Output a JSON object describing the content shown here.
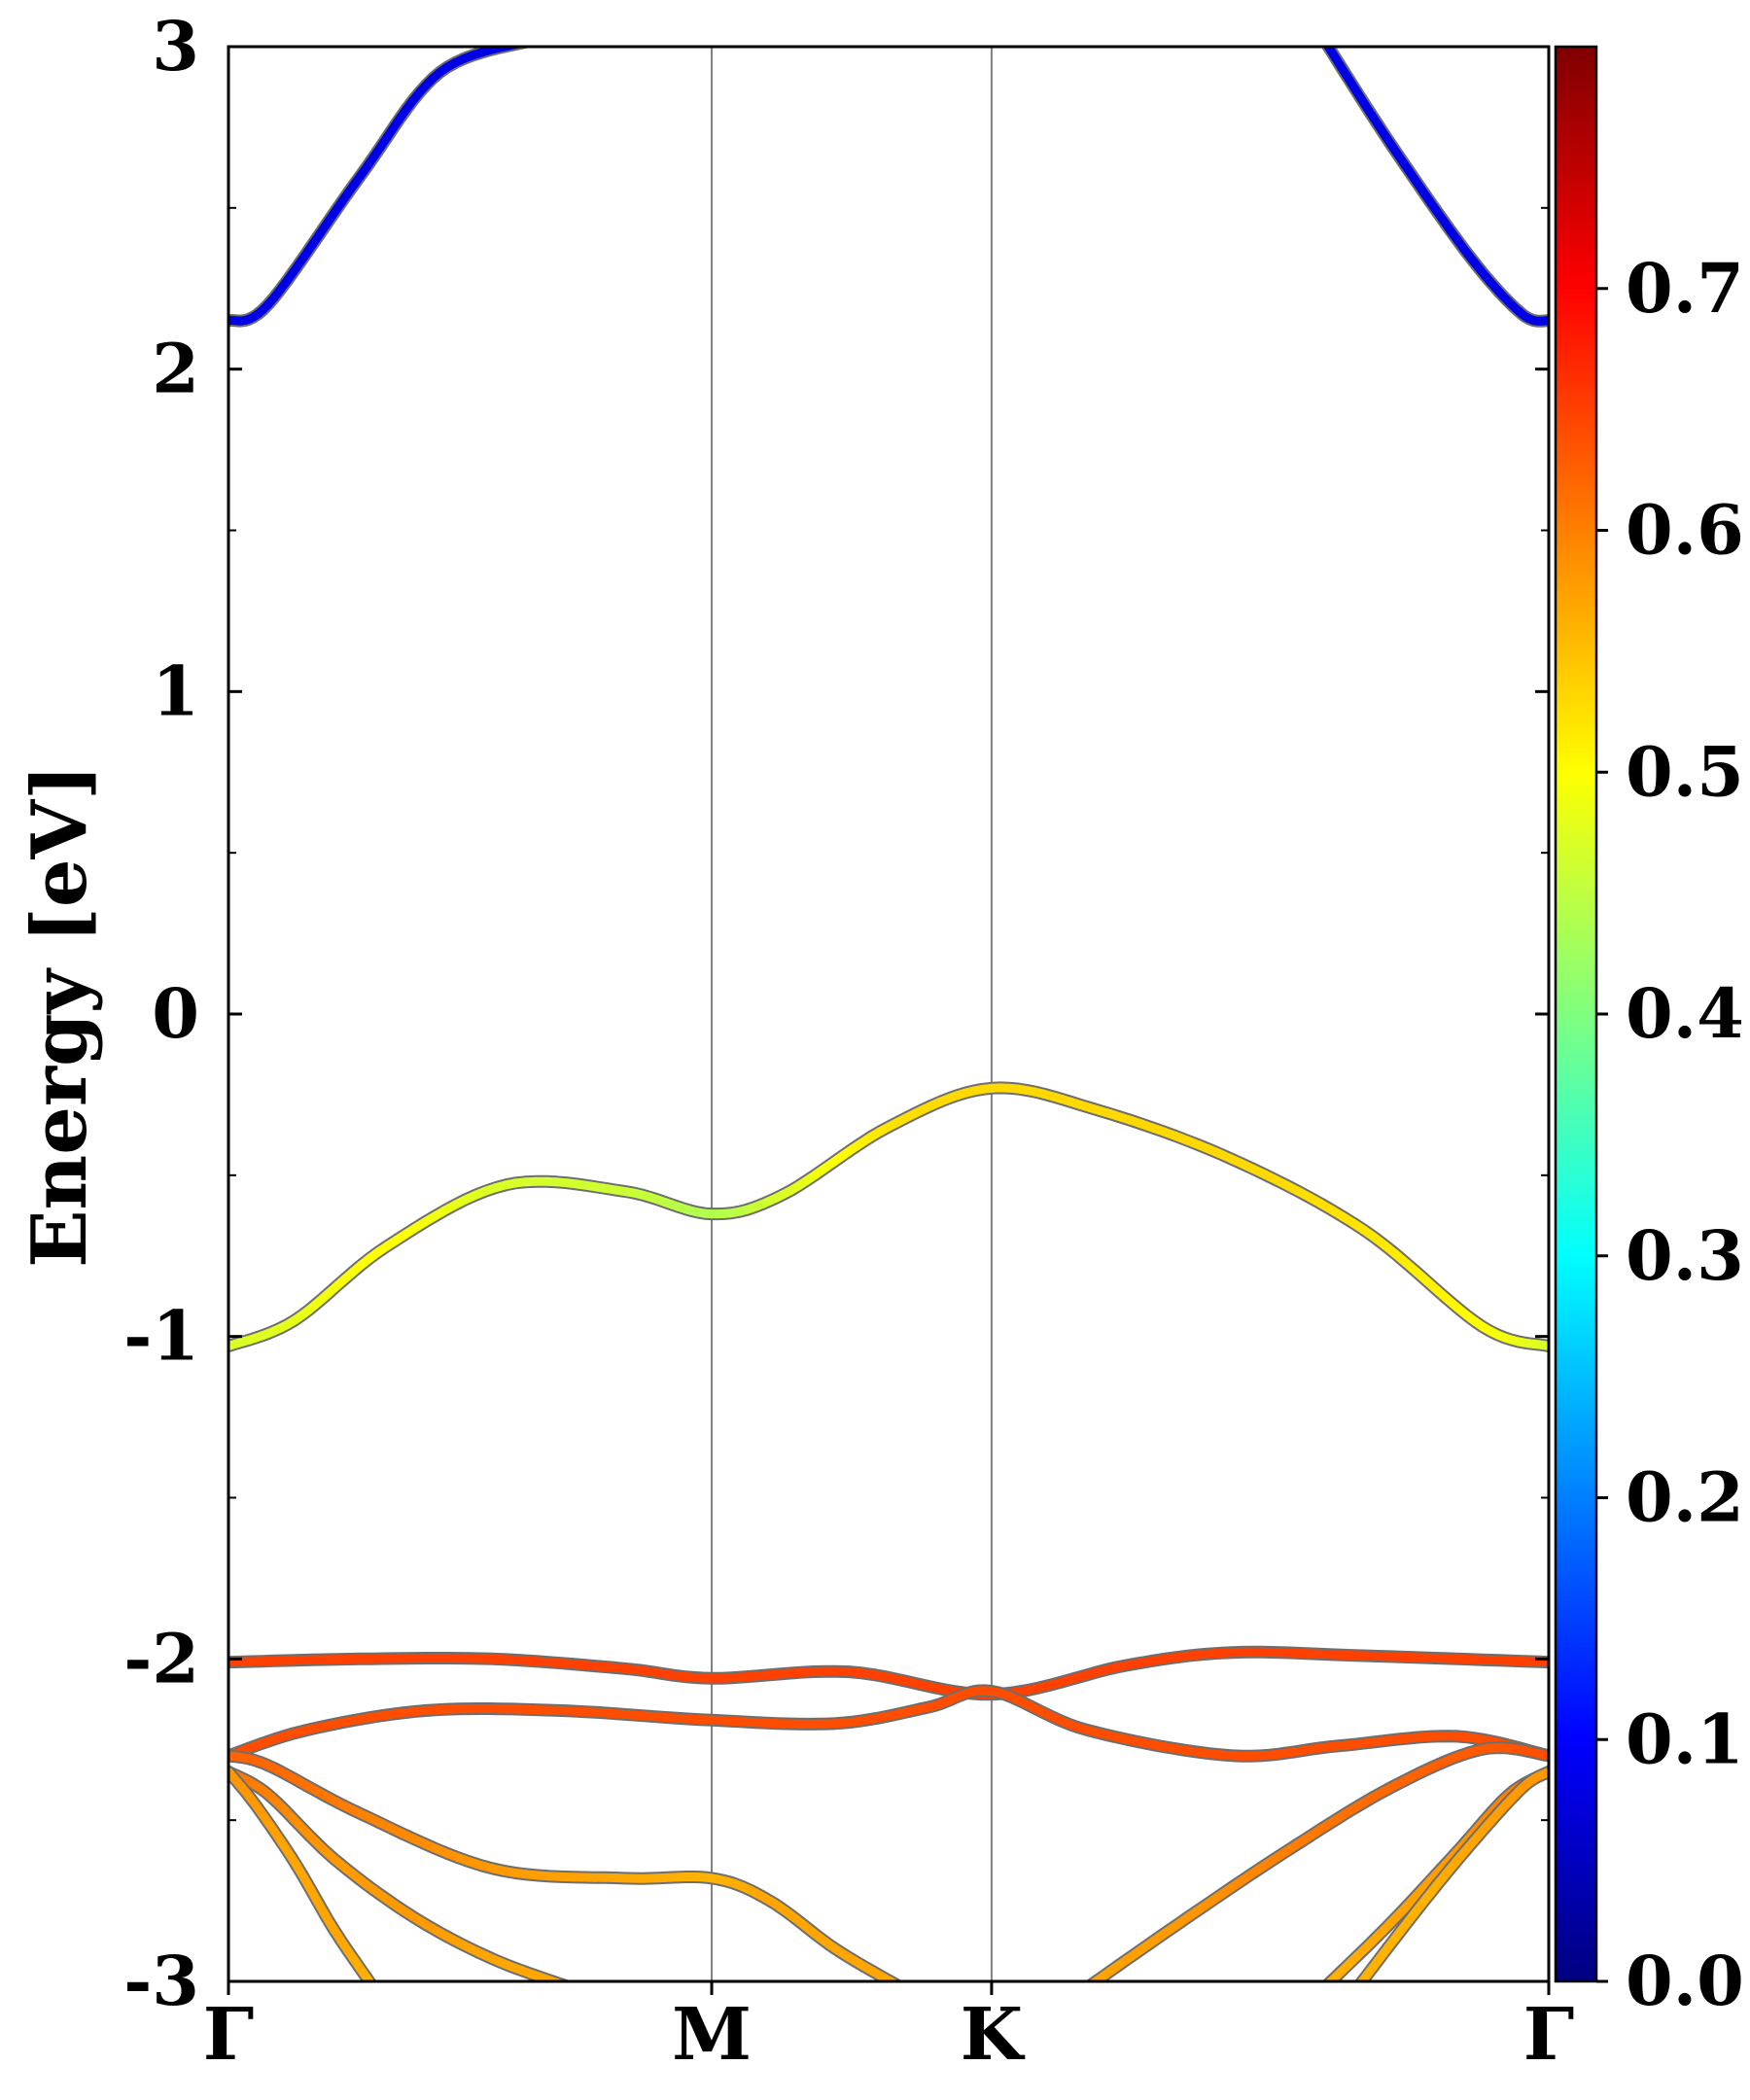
{
  "chart_data": {
    "type": "line",
    "ylabel": "Energy [eV]",
    "ylim": [
      -3,
      3
    ],
    "yticks": [
      "3",
      "2",
      "1",
      "0",
      "-1",
      "-2",
      "-3"
    ],
    "ytick_values": [
      3,
      2,
      1,
      0,
      -1,
      -2,
      -3
    ],
    "x_kpoints": [
      {
        "label": "Γ",
        "pos": 0.0
      },
      {
        "label": "M",
        "pos": 0.366
      },
      {
        "label": "K",
        "pos": 0.578
      },
      {
        "label": "Γ",
        "pos": 1.0
      }
    ],
    "colorbar": {
      "range": [
        0.0,
        0.8
      ],
      "ticks": [
        "0.0",
        "0.1",
        "0.2",
        "0.3",
        "0.4",
        "0.5",
        "0.6",
        "0.7"
      ],
      "tick_values": [
        0.0,
        0.1,
        0.2,
        0.3,
        0.4,
        0.5,
        0.6,
        0.7
      ],
      "colormap": "jet"
    },
    "series": [
      {
        "x": [
          0,
          0.03,
          0.1,
          0.16,
          0.23
        ],
        "y": [
          2.15,
          2.2,
          2.6,
          2.92,
          3.02
        ],
        "w": [
          0.08,
          0.08,
          0.08,
          0.08,
          0.08
        ]
      },
      {
        "x": [
          0.83,
          0.88,
          0.94,
          0.98,
          1.0
        ],
        "y": [
          3.02,
          2.7,
          2.35,
          2.17,
          2.15
        ],
        "w": [
          0.08,
          0.08,
          0.08,
          0.08,
          0.08
        ]
      },
      {
        "x": [
          0,
          0.05,
          0.12,
          0.21,
          0.3,
          0.366,
          0.42,
          0.5,
          0.578,
          0.66,
          0.76,
          0.86,
          0.95,
          1.0
        ],
        "y": [
          -1.03,
          -0.95,
          -0.72,
          -0.53,
          -0.55,
          -0.62,
          -0.56,
          -0.35,
          -0.23,
          -0.3,
          -0.45,
          -0.67,
          -0.97,
          -1.03
        ],
        "w": [
          0.47,
          0.48,
          0.5,
          0.47,
          0.46,
          0.44,
          0.47,
          0.52,
          0.53,
          0.53,
          0.53,
          0.52,
          0.5,
          0.47
        ]
      },
      {
        "x": [
          0,
          0.1,
          0.2,
          0.3,
          0.366,
          0.47,
          0.578,
          0.68,
          0.76,
          0.86,
          1.0
        ],
        "y": [
          -2.01,
          -2.0,
          -2.0,
          -2.03,
          -2.06,
          -2.04,
          -2.11,
          -2.02,
          -1.98,
          -1.99,
          -2.01
        ],
        "w": [
          0.65,
          0.65,
          0.65,
          0.65,
          0.65,
          0.65,
          0.65,
          0.65,
          0.65,
          0.65,
          0.65
        ]
      },
      {
        "x": [
          0,
          0.06,
          0.15,
          0.25,
          0.366,
          0.46,
          0.53,
          0.578,
          0.65,
          0.76,
          0.84,
          0.93,
          1.0
        ],
        "y": [
          -2.3,
          -2.22,
          -2.16,
          -2.16,
          -2.19,
          -2.2,
          -2.15,
          -2.1,
          -2.22,
          -2.3,
          -2.27,
          -2.24,
          -2.3
        ],
        "w": [
          0.64,
          0.64,
          0.64,
          0.64,
          0.64,
          0.64,
          0.64,
          0.64,
          0.64,
          0.64,
          0.64,
          0.64,
          0.64
        ]
      },
      {
        "x": [
          0,
          0.03,
          0.1,
          0.2,
          0.3,
          0.366,
          0.41,
          0.46,
          0.51
        ],
        "y": [
          -2.3,
          -2.33,
          -2.48,
          -2.65,
          -2.68,
          -2.68,
          -2.75,
          -2.9,
          -3.02
        ],
        "w": [
          0.62,
          0.62,
          0.6,
          0.58,
          0.57,
          0.56,
          0.57,
          0.57,
          0.57
        ]
      },
      {
        "x": [
          0,
          0.03,
          0.08,
          0.14,
          0.2,
          0.26
        ],
        "y": [
          -2.35,
          -2.42,
          -2.62,
          -2.8,
          -2.93,
          -3.02
        ],
        "w": [
          0.61,
          0.6,
          0.58,
          0.58,
          0.57,
          0.57
        ]
      },
      {
        "x": [
          0,
          0.02,
          0.05,
          0.08,
          0.11
        ],
        "y": [
          -2.35,
          -2.45,
          -2.63,
          -2.84,
          -3.02
        ],
        "w": [
          0.58,
          0.58,
          0.57,
          0.57,
          0.56
        ]
      },
      {
        "x": [
          0.65,
          0.72,
          0.8,
          0.88,
          0.95,
          1.0
        ],
        "y": [
          -3.02,
          -2.82,
          -2.6,
          -2.4,
          -2.28,
          -2.3
        ],
        "w": [
          0.57,
          0.58,
          0.6,
          0.62,
          0.63,
          0.64
        ]
      },
      {
        "x": [
          0.83,
          0.88,
          0.93,
          0.97,
          1.0
        ],
        "y": [
          -3.02,
          -2.82,
          -2.6,
          -2.42,
          -2.35
        ],
        "w": [
          0.56,
          0.57,
          0.58,
          0.6,
          0.6
        ]
      },
      {
        "x": [
          0.855,
          0.9,
          0.94,
          0.98,
          1.0
        ],
        "y": [
          -3.02,
          -2.78,
          -2.58,
          -2.4,
          -2.35
        ],
        "w": [
          0.56,
          0.56,
          0.57,
          0.58,
          0.58
        ]
      }
    ]
  }
}
